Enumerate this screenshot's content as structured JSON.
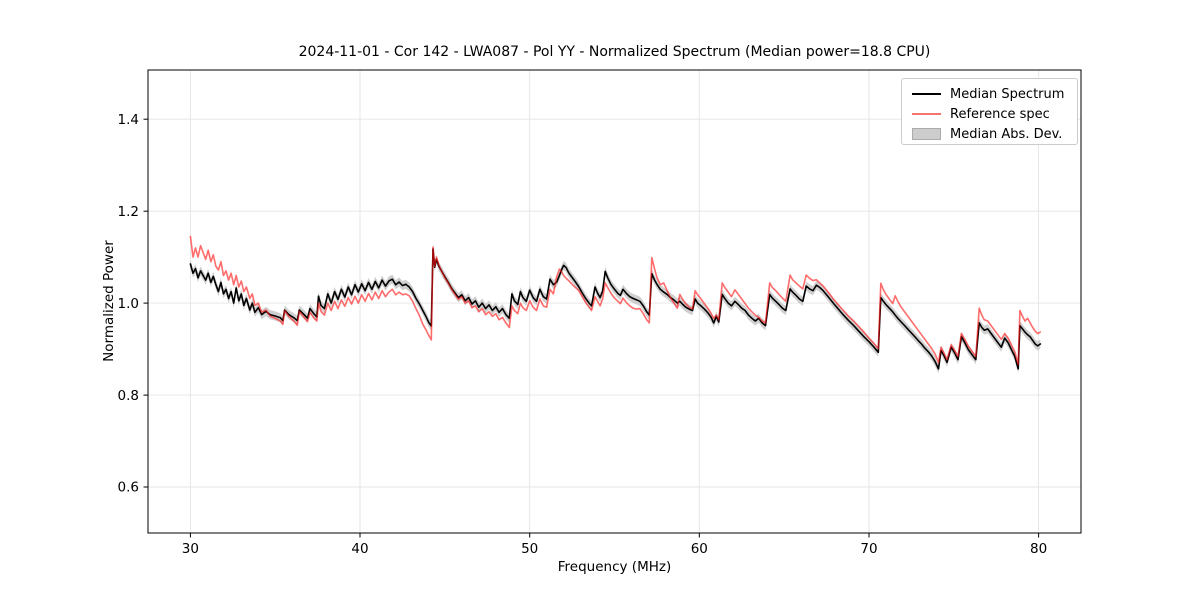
{
  "colors": {
    "median_line": "#000000",
    "reference_line_rgba": "rgba(255,18,18,0.62)",
    "reference_legend_swatch": "#f47472",
    "mad_band": "#cfcfcf",
    "grid": "#e4e4e4",
    "axis": "#000000",
    "background": "#ffffff"
  },
  "legend": {
    "items": [
      {
        "label": "Median Spectrum",
        "swatch": "black-line"
      },
      {
        "label": "Reference spec",
        "swatch": "salmon-line"
      },
      {
        "label": "Median Abs. Dev.",
        "swatch": "gray-patch"
      }
    ]
  },
  "chart_data": {
    "type": "line",
    "title": "2024-11-01 - Cor 142 - LWA087 - Pol YY - Normalized Spectrum (Median power=18.8 CPU)",
    "xlabel": "Frequency (MHz)",
    "ylabel": "Normalized Power",
    "xlim": [
      27.5,
      82.5
    ],
    "ylim": [
      0.5,
      1.507
    ],
    "x_ticks": [
      30,
      40,
      50,
      60,
      70,
      80
    ],
    "y_ticks": [
      "0.6",
      "0.8",
      "1.0",
      "1.2",
      "1.4"
    ],
    "grid": true,
    "legend_position": "upper right",
    "mad_halfwidth": 0.01,
    "columns": [
      "frequency_mhz",
      "median_spectrum",
      "reference_spec"
    ],
    "points": [
      [
        30.0,
        1.085,
        1.145
      ],
      [
        30.15,
        1.065,
        1.1
      ],
      [
        30.3,
        1.075,
        1.12
      ],
      [
        30.45,
        1.055,
        1.1
      ],
      [
        30.6,
        1.07,
        1.125
      ],
      [
        30.75,
        1.06,
        1.11
      ],
      [
        30.9,
        1.05,
        1.095
      ],
      [
        31.05,
        1.065,
        1.115
      ],
      [
        31.2,
        1.045,
        1.09
      ],
      [
        31.35,
        1.058,
        1.105
      ],
      [
        31.5,
        1.04,
        1.08
      ],
      [
        31.65,
        1.025,
        1.072
      ],
      [
        31.8,
        1.045,
        1.09
      ],
      [
        31.95,
        1.02,
        1.06
      ],
      [
        32.1,
        1.03,
        1.07
      ],
      [
        32.25,
        1.01,
        1.05
      ],
      [
        32.4,
        1.025,
        1.065
      ],
      [
        32.55,
        1.0,
        1.04
      ],
      [
        32.7,
        1.033,
        1.06
      ],
      [
        32.85,
        1.005,
        1.035
      ],
      [
        33.0,
        1.02,
        1.048
      ],
      [
        33.15,
        0.995,
        1.025
      ],
      [
        33.3,
        1.01,
        1.035
      ],
      [
        33.5,
        0.985,
        1.01
      ],
      [
        33.65,
        1.0,
        1.02
      ],
      [
        33.8,
        0.98,
        0.995
      ],
      [
        34.0,
        0.99,
        1.0
      ],
      [
        34.2,
        0.975,
        0.98
      ],
      [
        34.45,
        0.982,
        0.985
      ],
      [
        34.7,
        0.975,
        0.972
      ],
      [
        35.0,
        0.972,
        0.967
      ],
      [
        35.3,
        0.968,
        0.961
      ],
      [
        35.45,
        0.962,
        0.954
      ],
      [
        35.55,
        0.985,
        0.984
      ],
      [
        35.8,
        0.975,
        0.971
      ],
      [
        36.1,
        0.968,
        0.961
      ],
      [
        36.3,
        0.962,
        0.952
      ],
      [
        36.42,
        0.985,
        0.982
      ],
      [
        36.7,
        0.975,
        0.969
      ],
      [
        36.9,
        0.967,
        0.96
      ],
      [
        37.05,
        0.988,
        0.98
      ],
      [
        37.25,
        0.978,
        0.969
      ],
      [
        37.45,
        0.97,
        0.961
      ],
      [
        37.55,
        1.015,
        1.0
      ],
      [
        37.7,
        0.995,
        0.982
      ],
      [
        37.9,
        0.988,
        0.974
      ],
      [
        38.1,
        1.02,
        1.0
      ],
      [
        38.3,
        1.0,
        0.984
      ],
      [
        38.5,
        1.025,
        1.004
      ],
      [
        38.7,
        1.008,
        0.988
      ],
      [
        38.9,
        1.03,
        1.007
      ],
      [
        39.1,
        1.013,
        0.993
      ],
      [
        39.3,
        1.035,
        1.012
      ],
      [
        39.5,
        1.018,
        0.998
      ],
      [
        39.7,
        1.04,
        1.015
      ],
      [
        39.9,
        1.024,
        1.0
      ],
      [
        40.1,
        1.042,
        1.018
      ],
      [
        40.3,
        1.027,
        1.004
      ],
      [
        40.5,
        1.045,
        1.021
      ],
      [
        40.7,
        1.03,
        1.007
      ],
      [
        40.9,
        1.047,
        1.024
      ],
      [
        41.1,
        1.033,
        1.01
      ],
      [
        41.3,
        1.05,
        1.027
      ],
      [
        41.5,
        1.037,
        1.014
      ],
      [
        41.7,
        1.048,
        1.024
      ],
      [
        41.9,
        1.052,
        1.03
      ],
      [
        42.1,
        1.04,
        1.018
      ],
      [
        42.3,
        1.046,
        1.024
      ],
      [
        42.5,
        1.038,
        1.018
      ],
      [
        42.7,
        1.041,
        1.02
      ],
      [
        42.9,
        1.035,
        1.016
      ],
      [
        43.1,
        1.025,
        1.004
      ],
      [
        43.3,
        1.01,
        0.988
      ],
      [
        43.5,
        0.998,
        0.973
      ],
      [
        43.7,
        0.984,
        0.954
      ],
      [
        43.9,
        0.97,
        0.941
      ],
      [
        44.05,
        0.958,
        0.93
      ],
      [
        44.2,
        0.95,
        0.92
      ],
      [
        44.3,
        1.118,
        1.122
      ],
      [
        44.4,
        1.078,
        1.08
      ],
      [
        44.5,
        1.095,
        1.1
      ],
      [
        44.65,
        1.08,
        1.082
      ],
      [
        44.8,
        1.07,
        1.07
      ],
      [
        45.0,
        1.057,
        1.055
      ],
      [
        45.2,
        1.045,
        1.043
      ],
      [
        45.4,
        1.032,
        1.03
      ],
      [
        45.6,
        1.022,
        1.019
      ],
      [
        45.8,
        1.012,
        1.008
      ],
      [
        46.0,
        1.018,
        1.014
      ],
      [
        46.2,
        1.005,
        1.0
      ],
      [
        46.4,
        1.012,
        1.005
      ],
      [
        46.6,
        0.998,
        0.99
      ],
      [
        46.8,
        1.005,
        0.994
      ],
      [
        47.0,
        0.991,
        0.981
      ],
      [
        47.2,
        1.0,
        0.988
      ],
      [
        47.4,
        0.988,
        0.975
      ],
      [
        47.6,
        0.996,
        0.981
      ],
      [
        47.8,
        0.984,
        0.971
      ],
      [
        48.0,
        0.992,
        0.977
      ],
      [
        48.2,
        0.98,
        0.964
      ],
      [
        48.4,
        0.988,
        0.969
      ],
      [
        48.6,
        0.975,
        0.957
      ],
      [
        48.8,
        0.967,
        0.947
      ],
      [
        48.95,
        1.02,
        0.994
      ],
      [
        49.1,
        1.005,
        0.984
      ],
      [
        49.3,
        0.997,
        0.977
      ],
      [
        49.45,
        1.025,
        1.0
      ],
      [
        49.6,
        1.012,
        0.99
      ],
      [
        49.8,
        1.004,
        0.984
      ],
      [
        50.0,
        1.028,
        1.005
      ],
      [
        50.2,
        1.012,
        0.991
      ],
      [
        50.4,
        1.004,
        0.984
      ],
      [
        50.6,
        1.03,
        1.009
      ],
      [
        50.8,
        1.014,
        0.994
      ],
      [
        51.0,
        1.009,
        0.991
      ],
      [
        51.2,
        1.052,
        1.03
      ],
      [
        51.4,
        1.04,
        1.02
      ],
      [
        51.6,
        1.046,
        1.058
      ],
      [
        51.75,
        1.06,
        1.074
      ],
      [
        51.9,
        1.074,
        1.067
      ],
      [
        52.0,
        1.082,
        1.06
      ],
      [
        52.15,
        1.077,
        1.054
      ],
      [
        52.3,
        1.066,
        1.049
      ],
      [
        52.5,
        1.056,
        1.041
      ],
      [
        52.7,
        1.046,
        1.034
      ],
      [
        52.9,
        1.035,
        1.027
      ],
      [
        53.1,
        1.022,
        1.014
      ],
      [
        53.3,
        1.01,
        1.001
      ],
      [
        53.5,
        1.0,
        0.991
      ],
      [
        53.65,
        0.994,
        0.984
      ],
      [
        53.85,
        1.035,
        1.014
      ],
      [
        54.0,
        1.022,
        1.004
      ],
      [
        54.15,
        1.012,
        0.994
      ],
      [
        54.3,
        1.026,
        1.009
      ],
      [
        54.45,
        1.069,
        1.044
      ],
      [
        54.6,
        1.055,
        1.034
      ],
      [
        54.8,
        1.04,
        1.021
      ],
      [
        55.0,
        1.03,
        1.011
      ],
      [
        55.2,
        1.021,
        1.004
      ],
      [
        55.35,
        1.017,
        0.999
      ],
      [
        55.5,
        1.03,
        1.011
      ],
      [
        55.7,
        1.021,
        1.001
      ],
      [
        55.9,
        1.014,
        0.994
      ],
      [
        56.1,
        1.01,
        0.989
      ],
      [
        56.3,
        1.007,
        0.987
      ],
      [
        56.5,
        1.004,
        0.988
      ],
      [
        56.7,
        0.994,
        0.977
      ],
      [
        56.9,
        0.981,
        0.964
      ],
      [
        57.05,
        0.974,
        0.957
      ],
      [
        57.2,
        1.064,
        1.099
      ],
      [
        57.35,
        1.051,
        1.076
      ],
      [
        57.5,
        1.041,
        1.056
      ],
      [
        57.7,
        1.03,
        1.04
      ],
      [
        57.9,
        1.024,
        1.044
      ],
      [
        58.1,
        1.019,
        1.027
      ],
      [
        58.3,
        1.012,
        1.012
      ],
      [
        58.5,
        1.007,
        1.0
      ],
      [
        58.7,
        1.0,
        0.989
      ],
      [
        58.85,
        1.004,
        1.019
      ],
      [
        59.0,
        0.998,
        1.009
      ],
      [
        59.2,
        0.991,
        0.999
      ],
      [
        59.4,
        0.987,
        0.991
      ],
      [
        59.6,
        0.984,
        0.987
      ],
      [
        59.75,
        1.009,
        1.027
      ],
      [
        59.9,
        1.0,
        1.018
      ],
      [
        60.1,
        0.994,
        1.009
      ],
      [
        60.3,
        0.987,
        0.999
      ],
      [
        60.5,
        0.979,
        0.989
      ],
      [
        60.7,
        0.969,
        0.977
      ],
      [
        60.85,
        0.957,
        0.967
      ],
      [
        61.0,
        0.971,
        0.974
      ],
      [
        61.15,
        0.959,
        0.964
      ],
      [
        61.35,
        1.019,
        1.044
      ],
      [
        61.5,
        1.01,
        1.034
      ],
      [
        61.7,
        1.0,
        1.024
      ],
      [
        61.9,
        0.994,
        1.014
      ],
      [
        62.1,
        1.004,
        1.029
      ],
      [
        62.3,
        0.997,
        1.019
      ],
      [
        62.5,
        0.989,
        1.009
      ],
      [
        62.7,
        0.984,
        0.999
      ],
      [
        62.9,
        0.974,
        0.989
      ],
      [
        63.1,
        0.967,
        0.981
      ],
      [
        63.3,
        0.961,
        0.974
      ],
      [
        63.5,
        0.967,
        0.969
      ],
      [
        63.7,
        0.957,
        0.961
      ],
      [
        63.9,
        0.951,
        0.957
      ],
      [
        64.15,
        1.019,
        1.044
      ],
      [
        64.3,
        1.011,
        1.034
      ],
      [
        64.5,
        1.004,
        1.027
      ],
      [
        64.7,
        0.997,
        1.019
      ],
      [
        64.9,
        0.989,
        1.011
      ],
      [
        65.1,
        0.984,
        1.004
      ],
      [
        65.35,
        1.031,
        1.061
      ],
      [
        65.5,
        1.024,
        1.051
      ],
      [
        65.7,
        1.017,
        1.044
      ],
      [
        65.9,
        1.009,
        1.037
      ],
      [
        66.1,
        1.004,
        1.031
      ],
      [
        66.3,
        1.037,
        1.061
      ],
      [
        66.5,
        1.031,
        1.054
      ],
      [
        66.7,
        1.027,
        1.049
      ],
      [
        66.9,
        1.039,
        1.051
      ],
      [
        67.1,
        1.034,
        1.044
      ],
      [
        67.3,
        1.027,
        1.037
      ],
      [
        67.6,
        1.014,
        1.024
      ],
      [
        67.9,
        1.0,
        1.009
      ],
      [
        68.2,
        0.987,
        0.996
      ],
      [
        68.5,
        0.974,
        0.984
      ],
      [
        68.8,
        0.962,
        0.971
      ],
      [
        69.1,
        0.951,
        0.961
      ],
      [
        69.4,
        0.939,
        0.949
      ],
      [
        69.7,
        0.927,
        0.937
      ],
      [
        70.0,
        0.916,
        0.924
      ],
      [
        70.3,
        0.904,
        0.912
      ],
      [
        70.55,
        0.893,
        0.901
      ],
      [
        70.7,
        1.012,
        1.043
      ],
      [
        70.85,
        1.004,
        1.029
      ],
      [
        71.0,
        0.997,
        1.019
      ],
      [
        71.2,
        0.989,
        1.009
      ],
      [
        71.4,
        0.981,
        0.999
      ],
      [
        71.55,
        0.974,
        1.016
      ],
      [
        71.7,
        0.967,
        1.004
      ],
      [
        71.9,
        0.959,
        0.991
      ],
      [
        72.1,
        0.951,
        0.981
      ],
      [
        72.3,
        0.943,
        0.971
      ],
      [
        72.5,
        0.935,
        0.961
      ],
      [
        72.7,
        0.927,
        0.951
      ],
      [
        72.9,
        0.919,
        0.941
      ],
      [
        73.1,
        0.911,
        0.931
      ],
      [
        73.3,
        0.902,
        0.921
      ],
      [
        73.5,
        0.894,
        0.911
      ],
      [
        73.7,
        0.885,
        0.901
      ],
      [
        73.9,
        0.873,
        0.889
      ],
      [
        74.1,
        0.857,
        0.871
      ],
      [
        74.25,
        0.897,
        0.904
      ],
      [
        74.45,
        0.884,
        0.889
      ],
      [
        74.6,
        0.871,
        0.877
      ],
      [
        74.85,
        0.904,
        0.909
      ],
      [
        75.05,
        0.892,
        0.897
      ],
      [
        75.25,
        0.877,
        0.884
      ],
      [
        75.45,
        0.927,
        0.934
      ],
      [
        75.65,
        0.914,
        0.921
      ],
      [
        75.85,
        0.899,
        0.907
      ],
      [
        76.1,
        0.887,
        0.894
      ],
      [
        76.3,
        0.877,
        0.884
      ],
      [
        76.5,
        0.957,
        0.989
      ],
      [
        76.65,
        0.947,
        0.974
      ],
      [
        76.8,
        0.941,
        0.964
      ],
      [
        77.0,
        0.944,
        0.961
      ],
      [
        77.2,
        0.934,
        0.951
      ],
      [
        77.4,
        0.924,
        0.941
      ],
      [
        77.6,
        0.914,
        0.931
      ],
      [
        77.8,
        0.904,
        0.921
      ],
      [
        78.0,
        0.924,
        0.934
      ],
      [
        78.2,
        0.914,
        0.924
      ],
      [
        78.4,
        0.899,
        0.909
      ],
      [
        78.6,
        0.884,
        0.894
      ],
      [
        78.8,
        0.857,
        0.867
      ],
      [
        78.9,
        0.951,
        0.984
      ],
      [
        79.05,
        0.944,
        0.971
      ],
      [
        79.2,
        0.937,
        0.961
      ],
      [
        79.35,
        0.931,
        0.967
      ],
      [
        79.5,
        0.927,
        0.957
      ],
      [
        79.65,
        0.919,
        0.947
      ],
      [
        79.8,
        0.911,
        0.939
      ],
      [
        79.95,
        0.907,
        0.934
      ],
      [
        80.1,
        0.911,
        0.937
      ]
    ]
  }
}
